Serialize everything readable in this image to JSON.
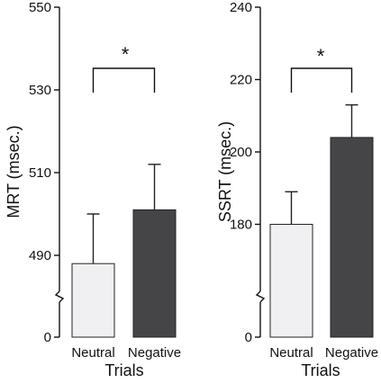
{
  "chart_data": [
    {
      "type": "bar",
      "xlabel": "Trials",
      "ylabel": "MRT (msec.)",
      "categories": [
        "Neutral",
        "Negative"
      ],
      "values": [
        488,
        501
      ],
      "errors": [
        12,
        11
      ],
      "colors": [
        "#f0f0f2",
        "#454548"
      ],
      "yticks": [
        "0",
        "490",
        "510",
        "530",
        "550"
      ],
      "ylim": [
        480,
        550
      ],
      "axis_break": true,
      "significance": "*"
    },
    {
      "type": "bar",
      "xlabel": "Trials",
      "ylabel": "SSRT (msec.)",
      "categories": [
        "Neutral",
        "Negative"
      ],
      "values": [
        180,
        204
      ],
      "errors": [
        9,
        9
      ],
      "colors": [
        "#f0f0f2",
        "#454548"
      ],
      "yticks": [
        "0",
        "180",
        "200",
        "220",
        "240"
      ],
      "ylim": [
        160,
        240
      ],
      "axis_break": true,
      "significance": "*"
    }
  ]
}
